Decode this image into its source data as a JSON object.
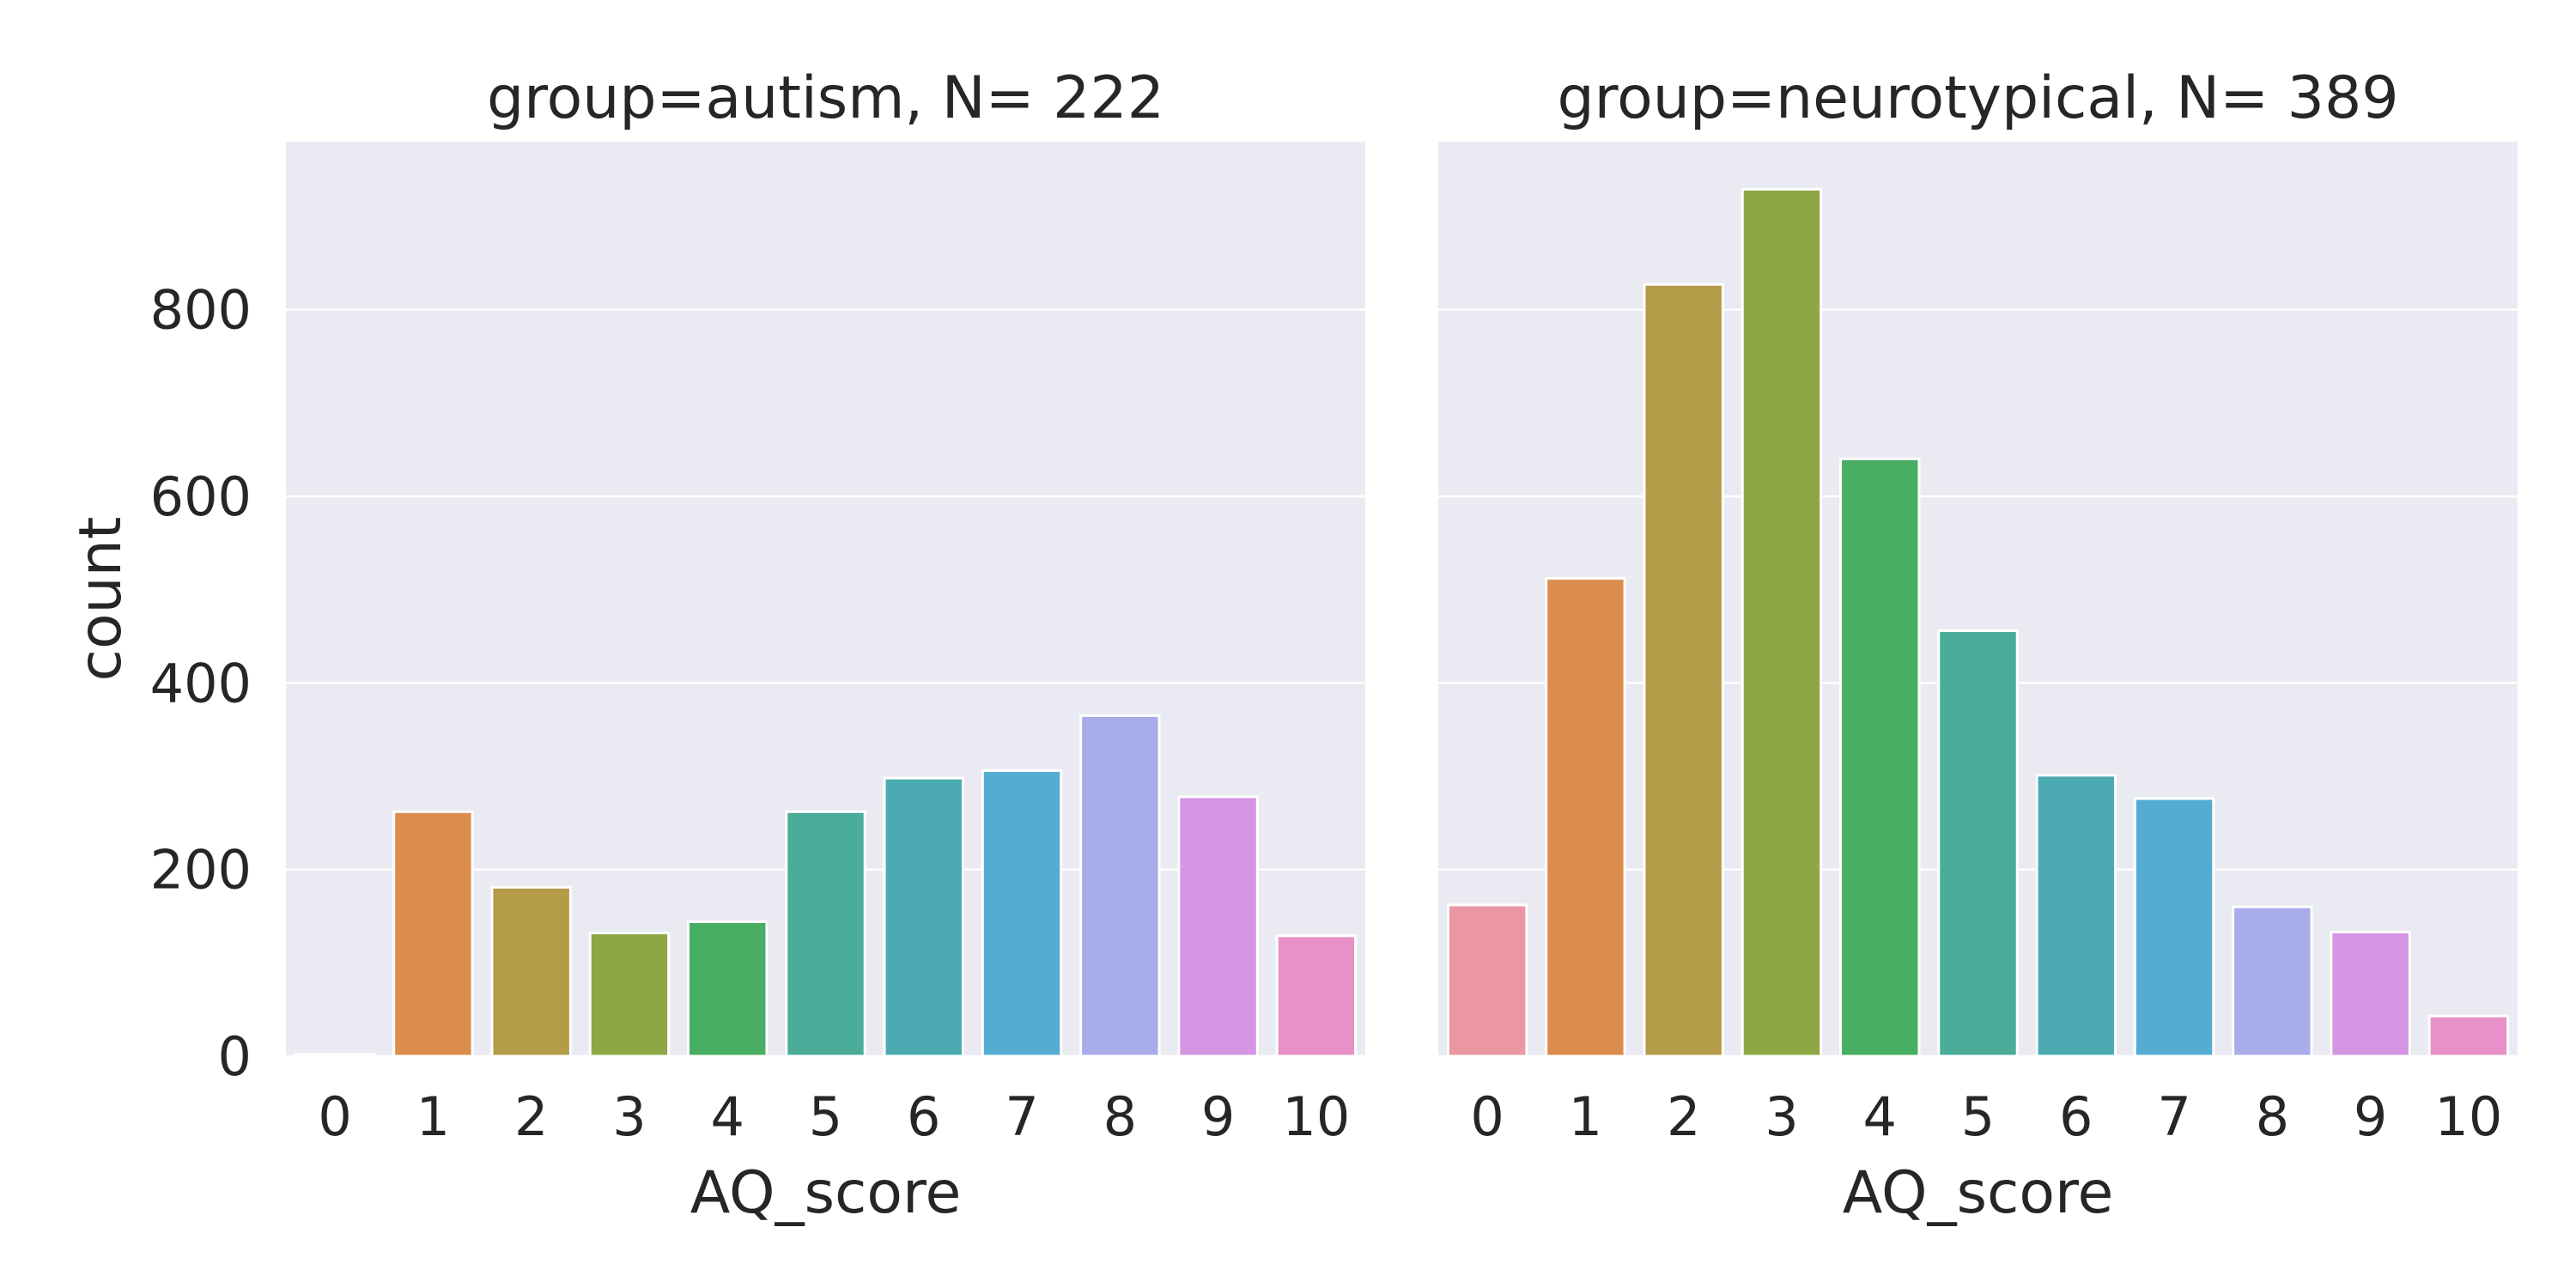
{
  "chart_data": [
    {
      "type": "bar",
      "title": "group=autism, N= 222",
      "xlabel": "AQ_score",
      "ylabel": "count",
      "categories": [
        "0",
        "1",
        "2",
        "3",
        "4",
        "5",
        "6",
        "7",
        "8",
        "9",
        "10"
      ],
      "values": [
        2,
        262,
        181,
        132,
        144,
        262,
        298,
        306,
        365,
        278,
        129
      ],
      "ylim": [
        0,
        980
      ],
      "yticks": [
        "0",
        "200",
        "400",
        "600",
        "800"
      ],
      "grid": true,
      "colors": [
        "#ea96a3",
        "#dc8d4e",
        "#b39b47",
        "#8da744",
        "#47ae63",
        "#4aac99",
        "#4cabb2",
        "#55acd2",
        "#a8acea",
        "#d694e5",
        "#e891c8"
      ]
    },
    {
      "type": "bar",
      "title": "group=neurotypical, N= 389",
      "xlabel": "AQ_score",
      "ylabel": "",
      "categories": [
        "0",
        "1",
        "2",
        "3",
        "4",
        "5",
        "6",
        "7",
        "8",
        "9",
        "10"
      ],
      "values": [
        162,
        512,
        827,
        929,
        640,
        456,
        301,
        276,
        160,
        133,
        43
      ],
      "ylim": [
        0,
        980
      ],
      "yticks": [
        "0",
        "200",
        "400",
        "600",
        "800"
      ],
      "grid": true,
      "colors": [
        "#ea96a3",
        "#dc8d4e",
        "#b39b47",
        "#8da744",
        "#47ae63",
        "#4aac99",
        "#4cabb2",
        "#55acd2",
        "#a8acea",
        "#d694e5",
        "#e891c8"
      ]
    }
  ]
}
